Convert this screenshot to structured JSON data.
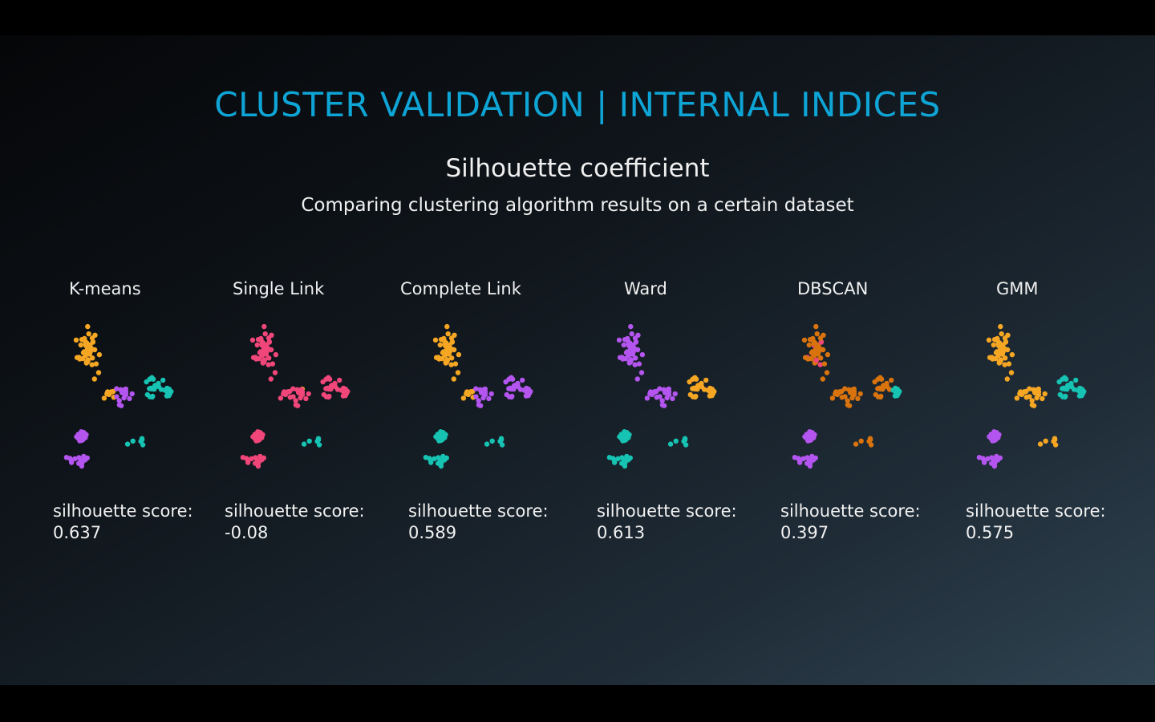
{
  "slide": {
    "title": "CLUSTER VALIDATION | INTERNAL INDICES",
    "subtitle": "Silhouette coefficient",
    "description": "Comparing clustering algorithm results on a certain dataset"
  },
  "colors": {
    "title": "#0ea5d6",
    "orange": "#f5a623",
    "teal": "#17c3b2",
    "purple": "#b455f0",
    "pink": "#f0467a",
    "dark_orange": "#d9730d"
  },
  "panels": [
    {
      "name": "K-means",
      "score_label": "silhouette score:",
      "score": "0.637"
    },
    {
      "name": "Single Link",
      "score_label": "silhouette score:",
      "score": "-0.08"
    },
    {
      "name": "Complete Link",
      "score_label": "silhouette score:",
      "score": "0.589"
    },
    {
      "name": "Ward",
      "score_label": "silhouette score:",
      "score": "0.613"
    },
    {
      "name": "DBSCAN",
      "score_label": "silhouette score:",
      "score": "0.397"
    },
    {
      "name": "GMM",
      "score_label": "silhouette score:",
      "score": "0.575"
    }
  ]
}
